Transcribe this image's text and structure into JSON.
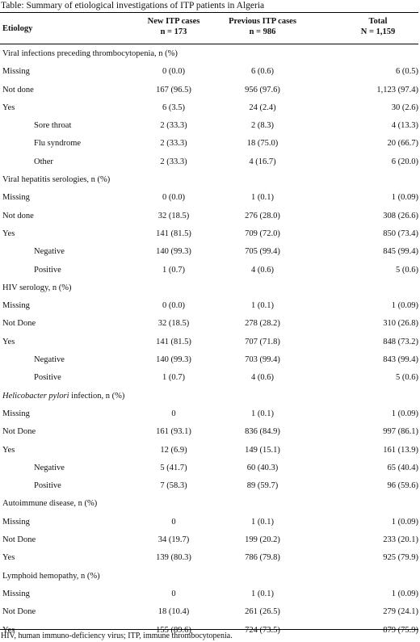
{
  "caption": "Table: Summary of etiological investigations of ITP patients in Algeria",
  "header": {
    "etiology": "Etiology",
    "col1_line1": "New ITP cases",
    "col1_line2": "n = 173",
    "col2_line1": "Previous ITP cases",
    "col2_line2": "n = 986",
    "col3_line1": "Total",
    "col3_line2": "N = 1,159"
  },
  "sections": [
    {
      "title": "Viral infections preceding thrombocytopenia, n (%)",
      "rows": [
        {
          "label": "Missing",
          "new": "0 (0.0)",
          "prev": "6 (0.6)",
          "total": "6 (0.5)",
          "sub": false
        },
        {
          "label": "Not done",
          "new": "167 (96.5)",
          "prev": "956 (97.6)",
          "total": "1,123 (97.4)",
          "sub": false
        },
        {
          "label": "Yes",
          "new": "6 (3.5)",
          "prev": "24 (2.4)",
          "total": "30 (2.6)",
          "sub": false
        },
        {
          "label": "Sore throat",
          "new": "2 (33.3)",
          "prev": "2 (8.3)",
          "total": "4 (13.3)",
          "sub": true
        },
        {
          "label": "Flu syndrome",
          "new": "2 (33.3)",
          "prev": "18 (75.0)",
          "total": "20 (66.7)",
          "sub": true
        },
        {
          "label": "Other",
          "new": "2 (33.3)",
          "prev": "4 (16.7)",
          "total": "6 (20.0)",
          "sub": true
        }
      ]
    },
    {
      "title": "Viral hepatitis serologies, n (%)",
      "rows": [
        {
          "label": "Missing",
          "new": "0 (0.0)",
          "prev": "1 (0.1)",
          "total": "1 (0.09)",
          "sub": false
        },
        {
          "label": "Not done",
          "new": "32 (18.5)",
          "prev": "276 (28.0)",
          "total": "308 (26.6)",
          "sub": false
        },
        {
          "label": "Yes",
          "new": "141 (81.5)",
          "prev": "709 (72.0)",
          "total": "850 (73.4)",
          "sub": false
        },
        {
          "label": "Negative",
          "new": "140 (99.3)",
          "prev": "705 (99.4)",
          "total": "845 (99.4)",
          "sub": true
        },
        {
          "label": "Positive",
          "new": "1 (0.7)",
          "prev": "4 (0.6)",
          "total": "5 (0.6)",
          "sub": true
        }
      ]
    },
    {
      "title": "HIV serology, n (%)",
      "rows": [
        {
          "label": "Missing",
          "new": "0 (0.0)",
          "prev": "1 (0.1)",
          "total": "1 (0.09)",
          "sub": false
        },
        {
          "label": "Not Done",
          "new": "32 (18.5)",
          "prev": "278 (28.2)",
          "total": "310 (26.8)",
          "sub": false
        },
        {
          "label": "Yes",
          "new": "141 (81.5)",
          "prev": "707 (71.8)",
          "total": "848 (73.2)",
          "sub": false
        },
        {
          "label": "Negative",
          "new": "140 (99.3)",
          "prev": "703 (99.4)",
          "total": "843 (99.4)",
          "sub": true
        },
        {
          "label": "Positive",
          "new": "1 (0.7)",
          "prev": "4 (0.6)",
          "total": "5 (0.6)",
          "sub": true
        }
      ]
    },
    {
      "title_italic": "Helicobacter pylori",
      "title": " infection, n (%)",
      "rows": [
        {
          "label": "Missing",
          "new": "0",
          "prev": "1 (0.1)",
          "total": "1 (0.09)",
          "sub": false
        },
        {
          "label": "Not Done",
          "new": "161 (93.1)",
          "prev": "836 (84.9)",
          "total": "997 (86.1)",
          "sub": false
        },
        {
          "label": "Yes",
          "new": "12 (6.9)",
          "prev": "149 (15.1)",
          "total": "161 (13.9)",
          "sub": false
        },
        {
          "label": "Negative",
          "new": "5 (41.7)",
          "prev": "60 (40.3)",
          "total": "65 (40.4)",
          "sub": true
        },
        {
          "label": "Positive",
          "new": "7 (58.3)",
          "prev": "89 (59.7)",
          "total": "96 (59.6)",
          "sub": true
        }
      ]
    },
    {
      "title": "Autoimmune disease, n (%)",
      "rows": [
        {
          "label": "Missing",
          "new": "0",
          "prev": "1 (0.1)",
          "total": "1 (0.09)",
          "sub": false
        },
        {
          "label": "Not Done",
          "new": "34 (19.7)",
          "prev": "199 (20.2)",
          "total": "233 (20.1)",
          "sub": false
        },
        {
          "label": "Yes",
          "new": "139 (80.3)",
          "prev": "786 (79.8)",
          "total": "925 (79.9)",
          "sub": false
        }
      ]
    },
    {
      "title": "Lymphoid hemopathy, n (%)",
      "rows": [
        {
          "label": "Missing",
          "new": "0",
          "prev": "1 (0.1)",
          "total": "1 (0.09)",
          "sub": false
        },
        {
          "label": "Not Done",
          "new": "18 (10.4)",
          "prev": "261 (26.5)",
          "total": "279 (24.1)",
          "sub": false
        },
        {
          "label": "Yes",
          "new": "155 (89.6)",
          "prev": "724 (73.5)",
          "total": "879 (75.9)",
          "sub": false
        }
      ]
    }
  ],
  "footnote": "HIV, human immuno-deficiency virus; ITP, immune thrombocytopenia."
}
